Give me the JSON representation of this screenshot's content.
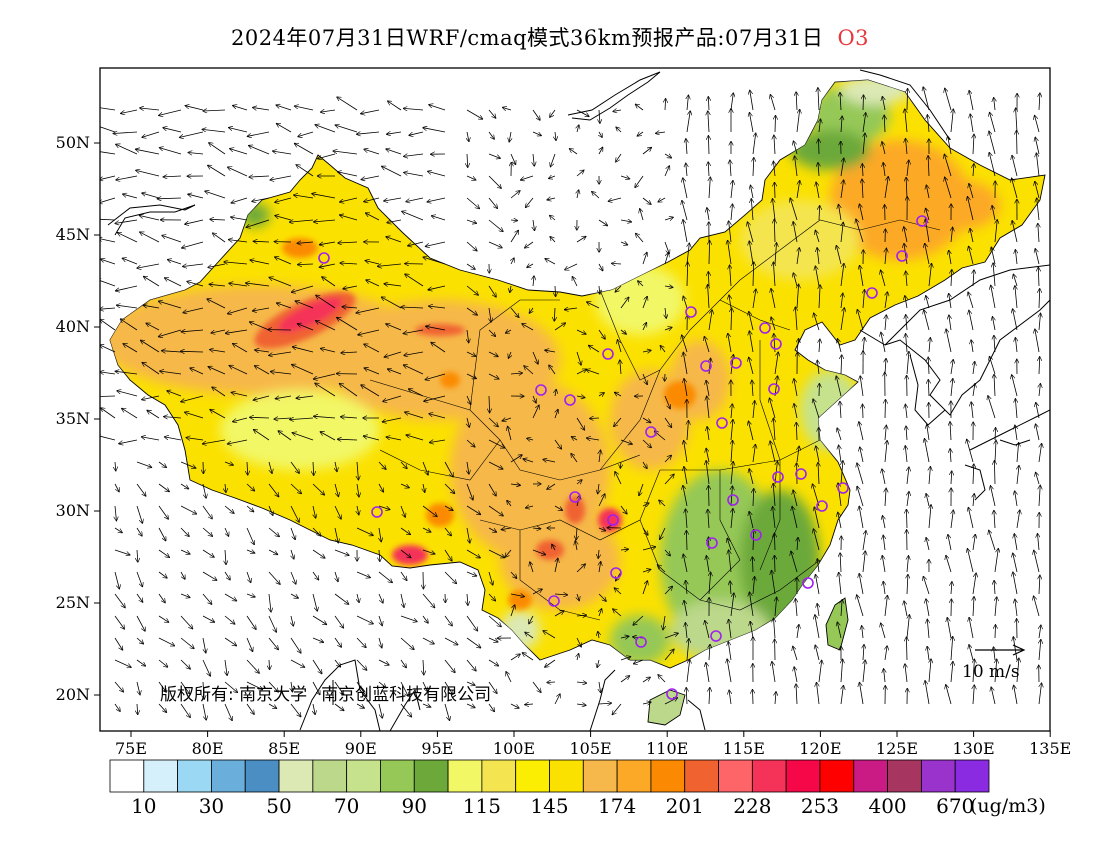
{
  "header": {
    "title": "2024年07月31日WRF/cmaq模式36km预报产品:07月31日",
    "species": "O3"
  },
  "map": {
    "lat_labels": [
      "50N",
      "45N",
      "40N",
      "35N",
      "30N",
      "25N",
      "20N"
    ],
    "lon_labels": [
      "75E",
      "80E",
      "85E",
      "90E",
      "95E",
      "100E",
      "105E",
      "110E",
      "115E",
      "120E",
      "125E",
      "130E",
      "135E"
    ],
    "lon_range": [
      73,
      135
    ],
    "lat_range": [
      18,
      54
    ]
  },
  "copyright": {
    "prefix": "版权所有:",
    "org1": "南京大学",
    "org2": "南京创蓝科技有限公司"
  },
  "wind_reference": {
    "label": "10 m/s"
  },
  "legend": {
    "colors": [
      "#ffffff",
      "#d6f0fb",
      "#9bd8f3",
      "#6aaedc",
      "#4a8ec4",
      "#dce9b5",
      "#bcd88b",
      "#c6e28c",
      "#95c856",
      "#6ca93a",
      "#f2f766",
      "#f4e550",
      "#fcee02",
      "#fbe100",
      "#f6b84a",
      "#fca928",
      "#fb8a02",
      "#f06230",
      "#fd6569",
      "#f53258",
      "#f60848",
      "#fe0000",
      "#ca1a84",
      "#a63560",
      "#9933cc",
      "#8a2be2"
    ],
    "labels": [
      "10",
      "30",
      "50",
      "70",
      "90",
      "115",
      "145",
      "174",
      "201",
      "228",
      "253",
      "400",
      "670"
    ],
    "unit": "(ug/m3)"
  },
  "stations_color": "#a020f0"
}
